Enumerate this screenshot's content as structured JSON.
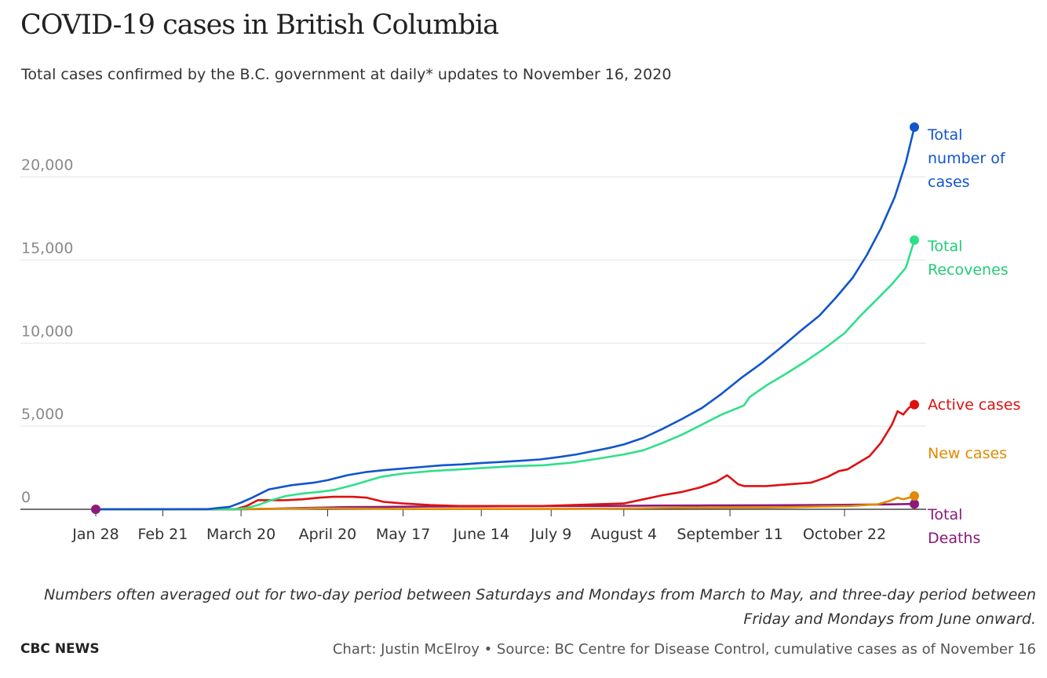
{
  "header": {
    "title": "COVID-19 cases in British Columbia",
    "subtitle": "Total cases confirmed by the B.C. government at daily* updates to November 16, 2020"
  },
  "chart_data": {
    "type": "line",
    "title": "COVID-19 cases in British Columbia",
    "xlabel": "",
    "ylabel": "",
    "ylim": [
      0,
      23000
    ],
    "xlim": [
      0,
      293
    ],
    "grid": true,
    "legend": "right (direct labels at line ends)",
    "y_ticks": [
      {
        "value": 0,
        "label": "0"
      },
      {
        "value": 5000,
        "label": "5,000"
      },
      {
        "value": 10000,
        "label": "10,000"
      },
      {
        "value": 15000,
        "label": "15,000"
      },
      {
        "value": 20000,
        "label": "20,000"
      }
    ],
    "x_ticks": [
      {
        "day": 0,
        "label": "Jan 28"
      },
      {
        "day": 24,
        "label": "Feb 21"
      },
      {
        "day": 52,
        "label": "March 20"
      },
      {
        "day": 83,
        "label": "April 20"
      },
      {
        "day": 110,
        "label": "May 17"
      },
      {
        "day": 138,
        "label": "June 14"
      },
      {
        "day": 163,
        "label": "July 9"
      },
      {
        "day": 189,
        "label": "August 4"
      },
      {
        "day": 227,
        "label": "September 11"
      },
      {
        "day": 268,
        "label": "October 22"
      }
    ],
    "series": [
      {
        "name": "Total number of cases",
        "label_lines": [
          "Total",
          "number of",
          "cases"
        ],
        "color": "#1155cc",
        "x": [
          0,
          40,
          48,
          52,
          56,
          62,
          70,
          78,
          83,
          90,
          97,
          103,
          110,
          117,
          124,
          131,
          138,
          145,
          152,
          159,
          166,
          172,
          178,
          184,
          189,
          196,
          203,
          210,
          217,
          224,
          231,
          238,
          245,
          252,
          259,
          265,
          271,
          276,
          281,
          286,
          290,
          293
        ],
        "y": [
          1,
          8,
          150,
          400,
          700,
          1200,
          1450,
          1600,
          1750,
          2050,
          2250,
          2350,
          2450,
          2550,
          2650,
          2700,
          2780,
          2850,
          2920,
          3000,
          3150,
          3300,
          3500,
          3700,
          3900,
          4300,
          4850,
          5450,
          6100,
          6950,
          7900,
          8750,
          9700,
          10700,
          11650,
          12750,
          13950,
          15300,
          16900,
          18800,
          20900,
          23000
        ]
      },
      {
        "name": "Total Recoveries",
        "label_lines": [
          "Total",
          "Recovenes"
        ],
        "color": "#2ee08a",
        "x": [
          0,
          50,
          54,
          58,
          62,
          68,
          74,
          80,
          85,
          92,
          97,
          102,
          110,
          120,
          130,
          140,
          150,
          160,
          170,
          180,
          189,
          196,
          203,
          210,
          217,
          224,
          232,
          234,
          240,
          247,
          254,
          261,
          268,
          274,
          280,
          285,
          290,
          293
        ],
        "y": [
          0,
          0,
          80,
          250,
          500,
          800,
          950,
          1050,
          1150,
          1450,
          1700,
          1950,
          2150,
          2300,
          2400,
          2500,
          2600,
          2650,
          2800,
          3050,
          3300,
          3550,
          4000,
          4500,
          5100,
          5700,
          6250,
          6750,
          7450,
          8150,
          8900,
          9700,
          10600,
          11700,
          12700,
          13550,
          14550,
          16200
        ]
      },
      {
        "name": "Active cases",
        "label_lines": [
          "Active cases"
        ],
        "color": "#dd1111",
        "x": [
          0,
          50,
          54,
          58,
          62,
          68,
          74,
          80,
          85,
          92,
          97,
          103,
          110,
          120,
          130,
          140,
          150,
          160,
          170,
          180,
          189,
          196,
          203,
          210,
          216,
          222,
          226,
          230,
          232,
          234,
          240,
          248,
          256,
          262,
          266,
          269,
          273,
          277,
          281,
          285,
          287,
          289,
          291,
          293
        ],
        "y": [
          0,
          0,
          200,
          550,
          550,
          550,
          600,
          700,
          750,
          750,
          700,
          450,
          350,
          250,
          200,
          200,
          200,
          200,
          250,
          300,
          350,
          600,
          850,
          1050,
          1300,
          1650,
          2050,
          1500,
          1400,
          1400,
          1400,
          1500,
          1600,
          1950,
          2300,
          2400,
          2800,
          3200,
          4000,
          5100,
          5900,
          5700,
          6100,
          6300
        ]
      },
      {
        "name": "New cases",
        "label_lines": [
          "New cases"
        ],
        "color": "#e08a00",
        "x": [
          0,
          50,
          60,
          70,
          80,
          90,
          100,
          110,
          120,
          130,
          140,
          150,
          160,
          170,
          180,
          190,
          200,
          210,
          220,
          230,
          240,
          250,
          260,
          270,
          275,
          280,
          284,
          287,
          289,
          291,
          293
        ],
        "y": [
          0,
          0,
          30,
          40,
          60,
          50,
          40,
          20,
          15,
          15,
          15,
          15,
          20,
          30,
          40,
          50,
          70,
          90,
          100,
          110,
          110,
          130,
          170,
          200,
          250,
          300,
          500,
          700,
          600,
          700,
          800
        ]
      },
      {
        "name": "Total Deaths",
        "label_lines": [
          "Total",
          "Deaths"
        ],
        "color": "#8b1a7a",
        "x": [
          0,
          52,
          60,
          70,
          80,
          90,
          100,
          110,
          120,
          140,
          160,
          180,
          200,
          220,
          240,
          260,
          280,
          293
        ],
        "y": [
          0,
          5,
          20,
          60,
          100,
          130,
          140,
          155,
          165,
          175,
          190,
          200,
          220,
          230,
          240,
          260,
          290,
          320
        ]
      }
    ]
  },
  "footnote": "Numbers often averaged out for two-day period between Saturdays and Mondays from March to May, and three-day period between Friday and Mondays from June onward.",
  "footer": {
    "brand": "CBC NEWS",
    "credit": "Chart: Justin McElroy • Source: BC Centre for Disease Control, cumulative cases as of November 16"
  }
}
